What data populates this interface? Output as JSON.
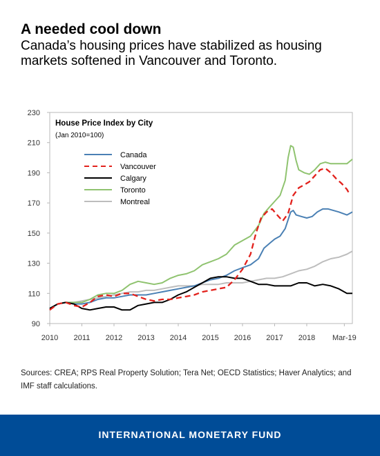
{
  "header": {
    "title": "A needed cool down",
    "subtitle": "Canada’s housing prices have stabilized as housing markets softened in Vancouver and Toronto."
  },
  "sources": "Sources: CREA; RPS Real Property Solution; Tera Net; OECD Statistics; Haver Analytics; and IMF staff calculations.",
  "footer": {
    "org": "INTERNATIONAL MONETARY FUND"
  },
  "chart_data": {
    "type": "line",
    "title": "House Price Index by City",
    "subtitle": "(Jan 2010=100)",
    "ylim": [
      90,
      230
    ],
    "yticks": [
      90,
      110,
      130,
      150,
      170,
      190,
      210,
      230
    ],
    "xlim": [
      2010,
      2019.42
    ],
    "xticks": [
      {
        "value": 2010,
        "label": "2010"
      },
      {
        "value": 2011,
        "label": "2011"
      },
      {
        "value": 2012,
        "label": "2012"
      },
      {
        "value": 2013,
        "label": "2013"
      },
      {
        "value": 2014,
        "label": "2014"
      },
      {
        "value": 2015,
        "label": "2015"
      },
      {
        "value": 2016,
        "label": "2016"
      },
      {
        "value": 2017,
        "label": "2017"
      },
      {
        "value": 2018,
        "label": "2018"
      },
      {
        "value": 2019.17,
        "label": "Mar-19"
      }
    ],
    "grid": false,
    "legend": "top-left",
    "series": [
      {
        "name": "Canada",
        "color": "#4a80b4",
        "dash": false,
        "points": [
          [
            2010,
            100
          ],
          [
            2010.25,
            103
          ],
          [
            2010.5,
            104
          ],
          [
            2010.75,
            103
          ],
          [
            2011,
            103
          ],
          [
            2011.25,
            104
          ],
          [
            2011.5,
            106
          ],
          [
            2011.75,
            107
          ],
          [
            2012,
            107
          ],
          [
            2012.25,
            108
          ],
          [
            2012.5,
            109
          ],
          [
            2012.75,
            109
          ],
          [
            2013,
            109
          ],
          [
            2013.25,
            110
          ],
          [
            2013.5,
            111
          ],
          [
            2013.75,
            112
          ],
          [
            2014,
            113
          ],
          [
            2014.25,
            114
          ],
          [
            2014.5,
            115
          ],
          [
            2014.75,
            117
          ],
          [
            2015,
            119
          ],
          [
            2015.25,
            120
          ],
          [
            2015.5,
            122
          ],
          [
            2015.75,
            125
          ],
          [
            2016,
            127
          ],
          [
            2016.25,
            129
          ],
          [
            2016.5,
            133
          ],
          [
            2016.67,
            140
          ],
          [
            2016.83,
            143
          ],
          [
            2017,
            146
          ],
          [
            2017.17,
            148
          ],
          [
            2017.33,
            153
          ],
          [
            2017.5,
            164
          ],
          [
            2017.58,
            165
          ],
          [
            2017.67,
            162
          ],
          [
            2017.83,
            161
          ],
          [
            2018,
            160
          ],
          [
            2018.17,
            161
          ],
          [
            2018.33,
            164
          ],
          [
            2018.5,
            166
          ],
          [
            2018.67,
            166
          ],
          [
            2018.83,
            165
          ],
          [
            2019,
            164
          ],
          [
            2019.25,
            162
          ],
          [
            2019.42,
            164
          ]
        ]
      },
      {
        "name": "Vancouver",
        "color": "#e2211c",
        "dash": true,
        "points": [
          [
            2010,
            99
          ],
          [
            2010.25,
            103
          ],
          [
            2010.5,
            104
          ],
          [
            2010.75,
            102
          ],
          [
            2011,
            101
          ],
          [
            2011.25,
            104
          ],
          [
            2011.5,
            108
          ],
          [
            2011.75,
            109
          ],
          [
            2012,
            108
          ],
          [
            2012.25,
            110
          ],
          [
            2012.5,
            110
          ],
          [
            2012.75,
            108
          ],
          [
            2013,
            106
          ],
          [
            2013.25,
            105
          ],
          [
            2013.5,
            106
          ],
          [
            2013.75,
            106
          ],
          [
            2014,
            107
          ],
          [
            2014.25,
            108
          ],
          [
            2014.5,
            109
          ],
          [
            2014.75,
            111
          ],
          [
            2015,
            112
          ],
          [
            2015.25,
            113
          ],
          [
            2015.5,
            114
          ],
          [
            2015.75,
            119
          ],
          [
            2016,
            126
          ],
          [
            2016.25,
            136
          ],
          [
            2016.42,
            150
          ],
          [
            2016.58,
            160
          ],
          [
            2016.75,
            164
          ],
          [
            2016.92,
            166
          ],
          [
            2017.08,
            162
          ],
          [
            2017.25,
            158
          ],
          [
            2017.42,
            163
          ],
          [
            2017.58,
            175
          ],
          [
            2017.75,
            180
          ],
          [
            2017.92,
            182
          ],
          [
            2018.08,
            184
          ],
          [
            2018.25,
            188
          ],
          [
            2018.42,
            192
          ],
          [
            2018.58,
            193
          ],
          [
            2018.75,
            190
          ],
          [
            2018.92,
            186
          ],
          [
            2019.08,
            183
          ],
          [
            2019.25,
            179
          ],
          [
            2019.33,
            176
          ]
        ]
      },
      {
        "name": "Calgary",
        "color": "#000000",
        "dash": false,
        "points": [
          [
            2010,
            100
          ],
          [
            2010.25,
            103
          ],
          [
            2010.5,
            104
          ],
          [
            2010.75,
            103
          ],
          [
            2011,
            100
          ],
          [
            2011.25,
            99
          ],
          [
            2011.5,
            100
          ],
          [
            2011.75,
            101
          ],
          [
            2012,
            101
          ],
          [
            2012.25,
            99
          ],
          [
            2012.5,
            99
          ],
          [
            2012.75,
            102
          ],
          [
            2013,
            103
          ],
          [
            2013.25,
            104
          ],
          [
            2013.5,
            104
          ],
          [
            2013.75,
            106
          ],
          [
            2014,
            109
          ],
          [
            2014.25,
            111
          ],
          [
            2014.5,
            114
          ],
          [
            2014.75,
            117
          ],
          [
            2015,
            120
          ],
          [
            2015.25,
            121
          ],
          [
            2015.5,
            121
          ],
          [
            2015.75,
            120
          ],
          [
            2016,
            120
          ],
          [
            2016.25,
            118
          ],
          [
            2016.5,
            116
          ],
          [
            2016.75,
            116
          ],
          [
            2017,
            115
          ],
          [
            2017.25,
            115
          ],
          [
            2017.5,
            115
          ],
          [
            2017.75,
            117
          ],
          [
            2018,
            117
          ],
          [
            2018.25,
            115
          ],
          [
            2018.5,
            116
          ],
          [
            2018.75,
            115
          ],
          [
            2019,
            113
          ],
          [
            2019.25,
            110
          ],
          [
            2019.42,
            110
          ]
        ]
      },
      {
        "name": "Toronto",
        "color": "#8fc36f",
        "dash": false,
        "points": [
          [
            2010,
            100
          ],
          [
            2010.25,
            103
          ],
          [
            2010.5,
            104
          ],
          [
            2010.75,
            104
          ],
          [
            2011,
            104
          ],
          [
            2011.25,
            106
          ],
          [
            2011.5,
            109
          ],
          [
            2011.75,
            110
          ],
          [
            2012,
            110
          ],
          [
            2012.25,
            112
          ],
          [
            2012.5,
            116
          ],
          [
            2012.75,
            118
          ],
          [
            2013,
            117
          ],
          [
            2013.25,
            116
          ],
          [
            2013.5,
            117
          ],
          [
            2013.75,
            120
          ],
          [
            2014,
            122
          ],
          [
            2014.25,
            123
          ],
          [
            2014.5,
            125
          ],
          [
            2014.75,
            129
          ],
          [
            2015,
            131
          ],
          [
            2015.25,
            133
          ],
          [
            2015.5,
            136
          ],
          [
            2015.75,
            142
          ],
          [
            2016,
            145
          ],
          [
            2016.25,
            148
          ],
          [
            2016.5,
            155
          ],
          [
            2016.67,
            163
          ],
          [
            2016.83,
            167
          ],
          [
            2017,
            171
          ],
          [
            2017.17,
            175
          ],
          [
            2017.33,
            185
          ],
          [
            2017.42,
            200
          ],
          [
            2017.5,
            208
          ],
          [
            2017.58,
            207
          ],
          [
            2017.67,
            198
          ],
          [
            2017.75,
            192
          ],
          [
            2017.92,
            190
          ],
          [
            2018.08,
            189
          ],
          [
            2018.25,
            192
          ],
          [
            2018.42,
            196
          ],
          [
            2018.58,
            197
          ],
          [
            2018.75,
            196
          ],
          [
            2019,
            196
          ],
          [
            2019.25,
            196
          ],
          [
            2019.42,
            199
          ]
        ]
      },
      {
        "name": "Montreal",
        "color": "#bdbdbd",
        "dash": false,
        "points": [
          [
            2010,
            100
          ],
          [
            2010.25,
            103
          ],
          [
            2010.5,
            104
          ],
          [
            2010.75,
            104
          ],
          [
            2011,
            105
          ],
          [
            2011.25,
            106
          ],
          [
            2011.5,
            107
          ],
          [
            2011.75,
            108
          ],
          [
            2012,
            109
          ],
          [
            2012.25,
            110
          ],
          [
            2012.5,
            111
          ],
          [
            2012.75,
            111
          ],
          [
            2013,
            112
          ],
          [
            2013.25,
            112
          ],
          [
            2013.5,
            113
          ],
          [
            2013.75,
            114
          ],
          [
            2014,
            115
          ],
          [
            2014.25,
            115
          ],
          [
            2014.5,
            115
          ],
          [
            2014.75,
            116
          ],
          [
            2015,
            116
          ],
          [
            2015.25,
            116
          ],
          [
            2015.5,
            117
          ],
          [
            2015.75,
            117
          ],
          [
            2016,
            117
          ],
          [
            2016.25,
            118
          ],
          [
            2016.5,
            119
          ],
          [
            2016.75,
            120
          ],
          [
            2017,
            120
          ],
          [
            2017.25,
            121
          ],
          [
            2017.5,
            123
          ],
          [
            2017.75,
            125
          ],
          [
            2018,
            126
          ],
          [
            2018.25,
            128
          ],
          [
            2018.5,
            131
          ],
          [
            2018.75,
            133
          ],
          [
            2019,
            134
          ],
          [
            2019.25,
            136
          ],
          [
            2019.42,
            138
          ]
        ]
      }
    ]
  }
}
